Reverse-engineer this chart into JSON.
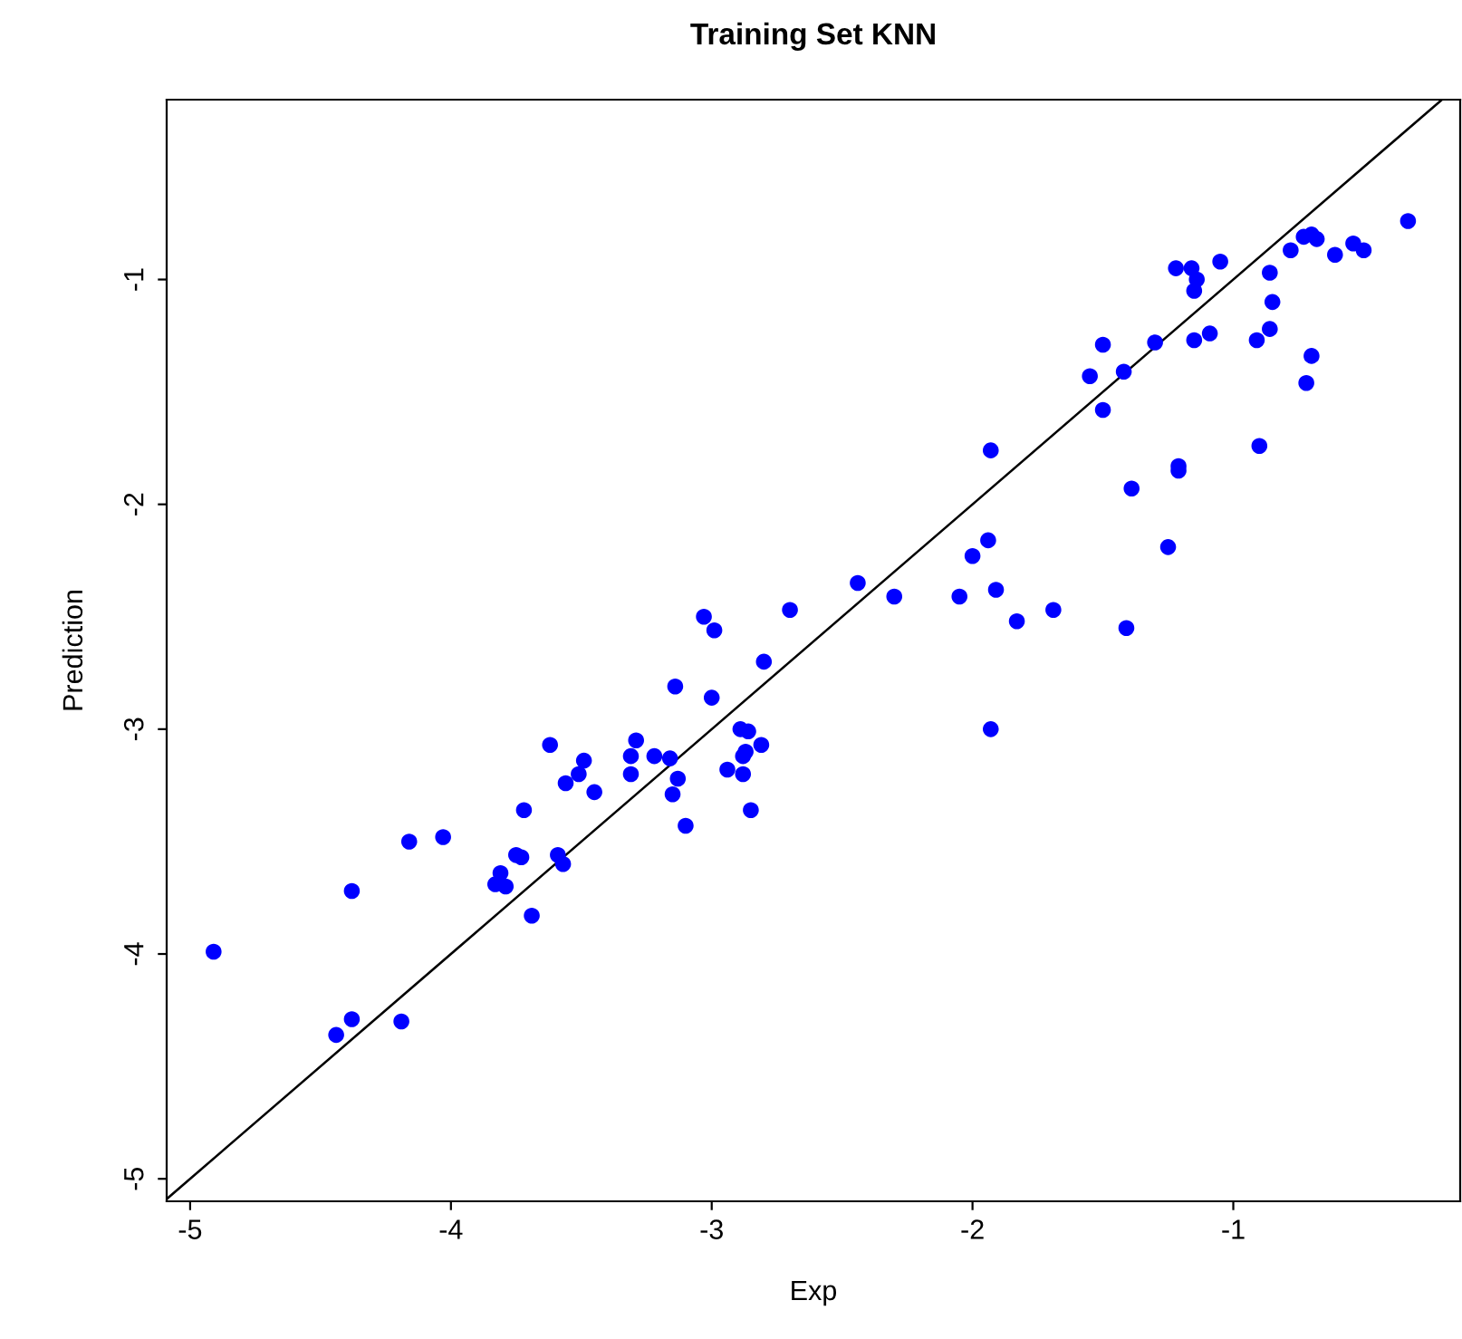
{
  "chart_data": {
    "type": "scatter",
    "title": "Training Set KNN",
    "xlabel": "Exp",
    "ylabel": "Prediction",
    "xlim": [
      -5.09,
      -0.13
    ],
    "ylim": [
      -5.1,
      -0.2
    ],
    "xticks": [
      -5,
      -4,
      -3,
      -2,
      -1
    ],
    "yticks": [
      -5,
      -4,
      -3,
      -2,
      -1
    ],
    "grid": false,
    "marker": "circle",
    "series": [
      {
        "color": "#0000ff",
        "x": [
          -4.91,
          -4.38,
          -4.16,
          -4.03,
          -4.44,
          -4.38,
          -4.19,
          -3.72,
          -3.62,
          -3.49,
          -3.51,
          -3.56,
          -3.45,
          -3.75,
          -3.73,
          -3.81,
          -3.83,
          -3.79,
          -3.69,
          -3.59,
          -3.57,
          -3.29,
          -3.31,
          -3.31,
          -3.22,
          -3.16,
          -3.13,
          -3.15,
          -3.1,
          -3.14,
          -3.0,
          -2.8,
          -2.89,
          -2.86,
          -2.81,
          -2.87,
          -2.88,
          -2.94,
          -2.88,
          -2.85,
          -3.03,
          -2.99,
          -2.7,
          -2.44,
          -2.3,
          -2.05,
          -2.0,
          -1.94,
          -1.91,
          -1.83,
          -1.69,
          -1.41,
          -1.93,
          -0.33,
          -0.73,
          -0.7,
          -0.68,
          -0.78,
          -0.61,
          -0.54,
          -0.5,
          -1.22,
          -1.16,
          -1.14,
          -1.15,
          -1.05,
          -0.86,
          -0.85,
          -0.86,
          -0.91,
          -1.15,
          -1.09,
          -1.3,
          -1.5,
          -1.55,
          -1.42,
          -1.5,
          -0.7,
          -0.72,
          -1.93,
          -0.9,
          -1.21,
          -1.21,
          -1.39,
          -1.25
        ],
        "values": [
          -3.99,
          -3.72,
          -3.5,
          -3.48,
          -4.36,
          -4.29,
          -4.3,
          -3.36,
          -3.07,
          -3.14,
          -3.2,
          -3.24,
          -3.28,
          -3.56,
          -3.57,
          -3.64,
          -3.69,
          -3.7,
          -3.83,
          -3.56,
          -3.6,
          -3.05,
          -3.12,
          -3.2,
          -3.12,
          -3.13,
          -3.22,
          -3.29,
          -3.43,
          -2.81,
          -2.86,
          -2.7,
          -3.0,
          -3.01,
          -3.07,
          -3.1,
          -3.12,
          -3.18,
          -3.2,
          -3.36,
          -2.5,
          -2.56,
          -2.47,
          -2.35,
          -2.41,
          -2.41,
          -2.23,
          -2.16,
          -2.38,
          -2.52,
          -2.47,
          -2.55,
          -3.0,
          -0.74,
          -0.81,
          -0.8,
          -0.82,
          -0.87,
          -0.89,
          -0.84,
          -0.87,
          -0.95,
          -0.95,
          -1.0,
          -1.05,
          -0.92,
          -0.97,
          -1.1,
          -1.22,
          -1.27,
          -1.27,
          -1.24,
          -1.28,
          -1.29,
          -1.43,
          -1.41,
          -1.58,
          -1.34,
          -1.46,
          -1.76,
          -1.74,
          -1.83,
          -1.85,
          -1.93,
          -2.19
        ]
      },
      {
        "type": "line",
        "color": "#000000",
        "marker": "none",
        "x": [
          -5.09,
          -0.2
        ],
        "values": [
          -5.09,
          -0.2
        ]
      }
    ]
  }
}
